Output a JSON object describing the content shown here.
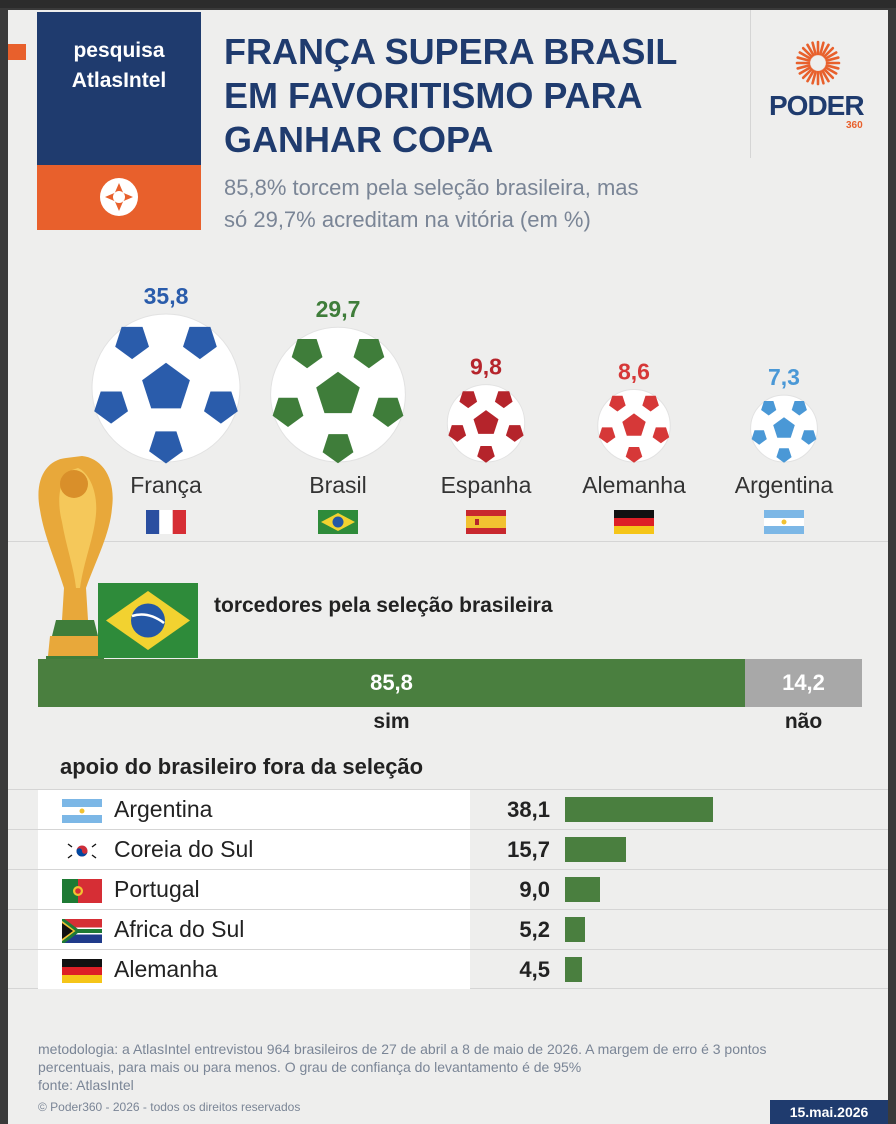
{
  "header": {
    "brand_label_1": "pesquisa",
    "brand_label_2": "AtlasIntel",
    "title_lines": [
      "FRANÇA SUPERA BRASIL",
      "EM FAVORITISMO PARA",
      "GANHAR COPA"
    ],
    "subtitle_lines": [
      "85,8% torcem pela seleção brasileira, mas",
      "só 29,7% acreditam na vitória (em %)"
    ],
    "logo_word": "PODER",
    "logo_num": "360"
  },
  "colors": {
    "navy": "#1f3b6e",
    "orange": "#e8602c",
    "green": "#4a7f3f",
    "grey": "#a8a8a8"
  },
  "chart_data": [
    {
      "type": "bar",
      "categories": [
        "França",
        "Brasil",
        "Espanha",
        "Alemanha",
        "Argentina"
      ],
      "values": [
        35.8,
        29.7,
        9.8,
        8.6,
        7.3
      ],
      "value_labels": [
        "35,8",
        "29,7",
        "9,8",
        "8,6",
        "7,3"
      ],
      "colors": [
        "#2a5cab",
        "#3f7d3a",
        "#b5242b",
        "#d63838",
        "#4a98d6"
      ],
      "flags": [
        "flag-france-icon",
        "flag-brazil-icon",
        "flag-spain-icon",
        "flag-germany-icon",
        "flag-argentina-icon"
      ]
    },
    {
      "type": "bar",
      "title": "torcedores pela seleção brasileira",
      "categories": [
        "sim",
        "não"
      ],
      "values": [
        85.8,
        14.2
      ],
      "value_labels": [
        "85,8",
        "14,2"
      ]
    },
    {
      "type": "bar",
      "title": "apoio do brasileiro fora da seleção",
      "categories": [
        "Argentina",
        "Coreia do Sul",
        "Portugal",
        "Africa do Sul",
        "Alemanha"
      ],
      "values": [
        38.1,
        15.7,
        9.0,
        5.2,
        4.5
      ],
      "value_labels": [
        "38,1",
        "15,7",
        "9,0",
        "5,2",
        "4,5"
      ],
      "flags": [
        "flag-argentina-icon",
        "flag-south-korea-icon",
        "flag-portugal-icon",
        "flag-south-africa-icon",
        "flag-germany-icon"
      ]
    }
  ],
  "footer": {
    "methodology": "metodologia: a AtlasIntel entrevistou 964 brasileiros de 27 de abril a 8 de maio de 2026. A margem de erro é 3 pontos percentuais, para mais ou para menos. O grau de confiança do levantamento é de 95%",
    "source": "fonte: AtlasIntel",
    "copyright": "© Poder360 - 2026 - todos os direitos reservados",
    "date": "15.mai.2026"
  }
}
